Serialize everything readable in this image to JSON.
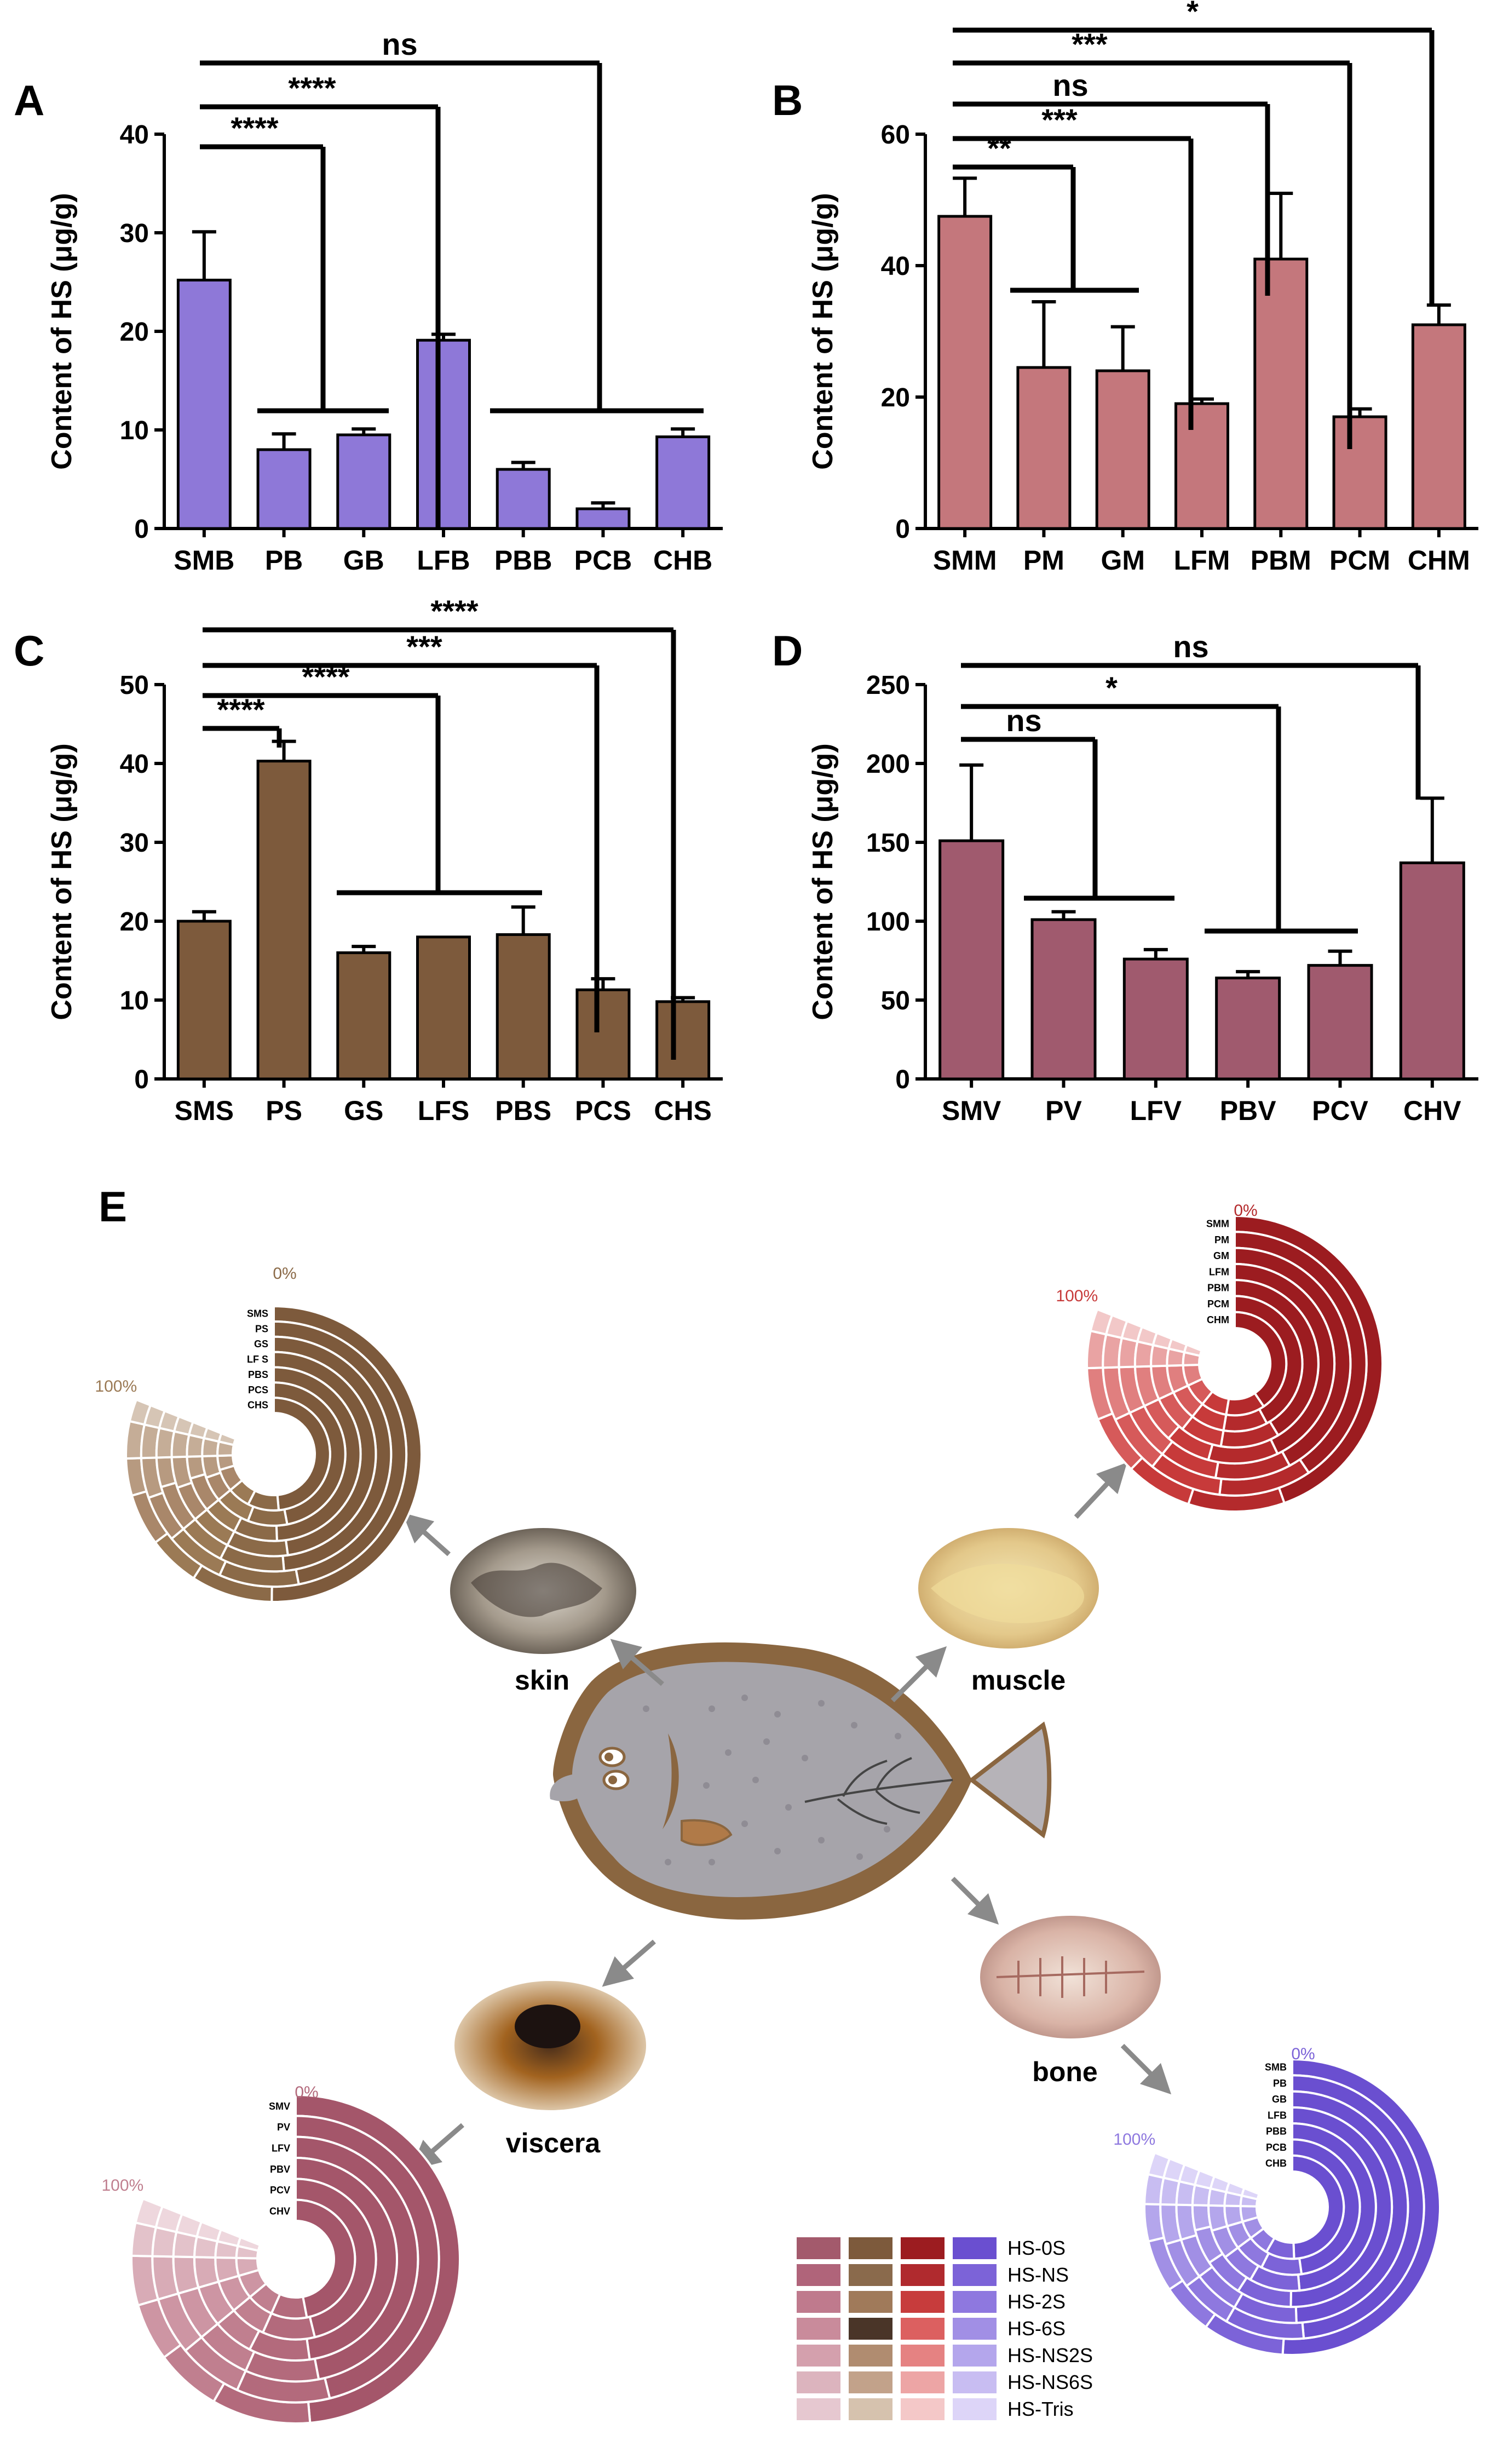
{
  "colors": {
    "bone": "#8e78d8",
    "muscle": "#c4777c",
    "skin": "#7d5a3c",
    "viscera": "#a05a6e"
  },
  "chart_data": [
    {
      "panel": "A",
      "type": "bar",
      "ylabel": "Content of HS (μg/g)",
      "ylim": [
        0,
        40
      ],
      "yticks": [
        0,
        10,
        20,
        30,
        40
      ],
      "categories": [
        "SMB",
        "PB",
        "GB",
        "LFB",
        "PBB",
        "PCB",
        "CHB"
      ],
      "values": [
        25.2,
        8,
        9.5,
        19.1,
        6,
        2,
        9.3
      ],
      "errors": [
        4.9,
        1.6,
        0.6,
        0.6,
        0.7,
        0.6,
        0.8
      ],
      "sig_marks": [
        "ns",
        "****",
        "****"
      ]
    },
    {
      "panel": "B",
      "type": "bar",
      "ylabel": "Content of HS (μg/g)",
      "ylim": [
        0,
        60
      ],
      "yticks": [
        0,
        20,
        40,
        60
      ],
      "categories": [
        "SMM",
        "PM",
        "GM",
        "LFM",
        "PBM",
        "PCM",
        "CHM"
      ],
      "values": [
        47.5,
        24.5,
        24,
        19,
        41,
        17,
        31
      ],
      "errors": [
        5.8,
        10,
        6.7,
        0.7,
        10,
        1.2,
        3
      ],
      "sig_marks": [
        "*",
        "***",
        "ns",
        "***",
        "**"
      ]
    },
    {
      "panel": "C",
      "type": "bar",
      "ylabel": "Content of HS (μg/g)",
      "ylim": [
        0,
        50
      ],
      "yticks": [
        0,
        10,
        20,
        30,
        40,
        50
      ],
      "categories": [
        "SMS",
        "PS",
        "GS",
        "LFS",
        "PBS",
        "PCS",
        "CHS"
      ],
      "values": [
        20,
        40.3,
        16,
        18,
        18.3,
        11.3,
        9.8
      ],
      "errors": [
        1.2,
        2.5,
        0.8,
        0,
        3.5,
        1.4,
        0.5
      ],
      "sig_marks": [
        "****",
        "***",
        "****",
        "****"
      ]
    },
    {
      "panel": "D",
      "type": "bar",
      "ylabel": "Content of HS (μg/g)",
      "ylim": [
        0,
        250
      ],
      "yticks": [
        0,
        50,
        100,
        150,
        200,
        250
      ],
      "categories": [
        "SMV",
        "PV",
        "LFV",
        "PBV",
        "PCV",
        "CHV"
      ],
      "values": [
        151,
        101,
        76,
        64,
        72,
        137
      ],
      "errors": [
        48,
        5,
        6,
        4,
        9,
        41
      ],
      "sig_marks": [
        "ns",
        "*",
        "ns"
      ]
    },
    {
      "panel": "E",
      "type": "radial-stacked",
      "legend": [
        "HS-0S",
        "HS-NS",
        "HS-2S",
        "HS-6S",
        "HS-NS2S",
        "HS-NS6S",
        "HS-Tris"
      ],
      "groups": [
        {
          "tissue": "skin",
          "labels": [
            "SMS",
            "PS",
            "GS",
            "LF S",
            "PBS",
            "PCS",
            "CHS"
          ],
          "start": "0%",
          "end": "100%",
          "composition": [
            [
              0.62,
              0.11,
              0.07,
              0.07,
              0.05,
              0.05,
              0.03
            ],
            [
              0.58,
              0.12,
              0.09,
              0.07,
              0.06,
              0.05,
              0.03
            ],
            [
              0.6,
              0.11,
              0.08,
              0.08,
              0.05,
              0.05,
              0.03
            ],
            [
              0.59,
              0.12,
              0.08,
              0.07,
              0.06,
              0.05,
              0.03
            ],
            [
              0.61,
              0.1,
              0.08,
              0.08,
              0.05,
              0.05,
              0.03
            ],
            [
              0.58,
              0.11,
              0.1,
              0.07,
              0.06,
              0.05,
              0.03
            ],
            [
              0.6,
              0.11,
              0.08,
              0.08,
              0.05,
              0.05,
              0.03
            ]
          ]
        },
        {
          "tissue": "muscle",
          "labels": [
            "SMM",
            "PM",
            "GM",
            "LFM",
            "PBM",
            "PCM",
            "CHM"
          ],
          "start": "0%",
          "end": "100%",
          "composition": [
            [
              0.55,
              0.13,
              0.09,
              0.08,
              0.07,
              0.05,
              0.03
            ],
            [
              0.5,
              0.14,
              0.11,
              0.09,
              0.08,
              0.05,
              0.03
            ],
            [
              0.52,
              0.13,
              0.1,
              0.09,
              0.08,
              0.05,
              0.03
            ],
            [
              0.53,
              0.14,
              0.09,
              0.08,
              0.08,
              0.05,
              0.03
            ],
            [
              0.51,
              0.14,
              0.1,
              0.09,
              0.08,
              0.05,
              0.03
            ],
            [
              0.52,
              0.13,
              0.1,
              0.09,
              0.08,
              0.05,
              0.03
            ],
            [
              0.5,
              0.15,
              0.1,
              0.09,
              0.08,
              0.05,
              0.03
            ]
          ]
        },
        {
          "tissue": "viscera",
          "labels": [
            "SMV",
            "PV",
            "LFV",
            "PBV",
            "PCV",
            "CHV"
          ],
          "start": "0%",
          "end": "100%",
          "composition": [
            [
              0.6,
              0.12,
              0.08,
              0.07,
              0.06,
              0.04,
              0.03
            ],
            [
              0.57,
              0.13,
              0.09,
              0.08,
              0.06,
              0.04,
              0.03
            ],
            [
              0.58,
              0.12,
              0.09,
              0.08,
              0.06,
              0.04,
              0.03
            ],
            [
              0.59,
              0.12,
              0.08,
              0.08,
              0.06,
              0.04,
              0.03
            ],
            [
              0.57,
              0.13,
              0.09,
              0.08,
              0.06,
              0.04,
              0.03
            ],
            [
              0.58,
              0.12,
              0.09,
              0.08,
              0.06,
              0.04,
              0.03
            ]
          ]
        },
        {
          "tissue": "bone",
          "labels": [
            "SMB",
            "PB",
            "GB",
            "LFB",
            "PBB",
            "PCB",
            "CHB"
          ],
          "start": "0%",
          "end": "100%",
          "composition": [
            [
              0.63,
              0.11,
              0.07,
              0.07,
              0.05,
              0.04,
              0.03
            ],
            [
              0.6,
              0.12,
              0.08,
              0.07,
              0.06,
              0.04,
              0.03
            ],
            [
              0.61,
              0.11,
              0.08,
              0.07,
              0.06,
              0.04,
              0.03
            ],
            [
              0.62,
              0.11,
              0.08,
              0.07,
              0.05,
              0.04,
              0.03
            ],
            [
              0.6,
              0.12,
              0.08,
              0.07,
              0.06,
              0.04,
              0.03
            ],
            [
              0.59,
              0.12,
              0.09,
              0.07,
              0.06,
              0.04,
              0.03
            ],
            [
              0.61,
              0.11,
              0.08,
              0.07,
              0.06,
              0.04,
              0.03
            ]
          ]
        }
      ]
    }
  ],
  "palettes": {
    "skin": [
      "#7d5a3c",
      "#8b6a48",
      "#9b7a55",
      "#a9876a",
      "#b79a80",
      "#c5ad97",
      "#d6c5b5"
    ],
    "muscle": [
      "#9c1c20",
      "#b42a2c",
      "#c73a3a",
      "#d65a5a",
      "#e07f7f",
      "#e9a3a3",
      "#f2c8c8"
    ],
    "viscera": [
      "#a4566a",
      "#b36a7c",
      "#c07f8f",
      "#cd95a3",
      "#d8abb6",
      "#e3c2ca",
      "#eed7dd"
    ],
    "bone": [
      "#6a4fd0",
      "#7c63d8",
      "#8e78df",
      "#a18fe5",
      "#b4a6ec",
      "#c8bdf2",
      "#ddd5f8"
    ],
    "legend_columns": [
      [
        "#a35a6c",
        "#b0647a",
        "#bf7a8d",
        "#c98b9b",
        "#d4a0ad",
        "#dcb4be",
        "#e6c8d0"
      ],
      [
        "#7d5a3c",
        "#8a6a4c",
        "#a07a5a",
        "#4a3528",
        "#b08c70",
        "#c2a28a",
        "#d6c2ae"
      ],
      [
        "#9c1c20",
        "#b02a2e",
        "#c73c3c",
        "#dc6060",
        "#e58282",
        "#eda5a5",
        "#f4c8c8"
      ],
      [
        "#6a4fd0",
        "#7c63d8",
        "#8e78df",
        "#a18fe5",
        "#b4a6ec",
        "#c8bdf2",
        "#ddd5f8"
      ]
    ]
  },
  "tissue_labels": [
    "skin",
    "muscle",
    "bone",
    "viscera"
  ]
}
